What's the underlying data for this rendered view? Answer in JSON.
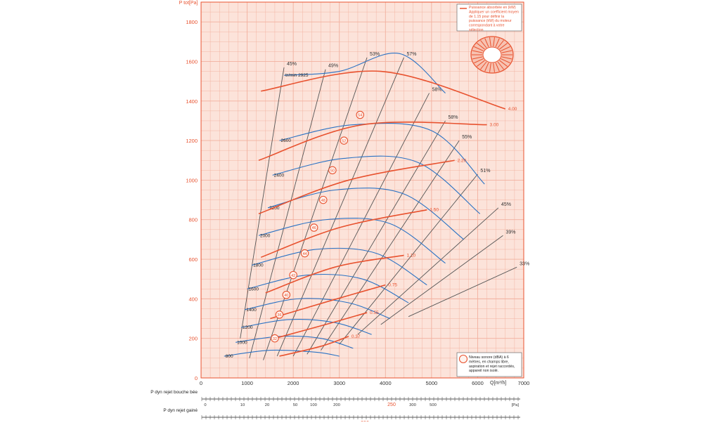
{
  "chart_data": {
    "type": "line",
    "title": "",
    "xlabel": "Q[m³/h]",
    "ylabel": "P tot[Pa]",
    "xlim": [
      0,
      7000
    ],
    "ylim": [
      0,
      1900
    ],
    "x_ticks": [
      0,
      1000,
      2000,
      3000,
      4000,
      5000,
      6000,
      7000
    ],
    "y_ticks": [
      0,
      200,
      400,
      600,
      800,
      1000,
      1200,
      1400,
      1600,
      1800
    ],
    "grid": true,
    "colors": {
      "background": "#fce3da",
      "grid": "#f2b09e",
      "speed": "#2a72c4",
      "power": "#e8522f",
      "efficiency": "#555555",
      "noise": "#111111",
      "axis": "#e8522f"
    },
    "speed_curves": [
      {
        "label": "800",
        "points": [
          [
            500,
            110
          ],
          [
            1500,
            140
          ],
          [
            2500,
            130
          ],
          [
            3000,
            110
          ]
        ]
      },
      {
        "label": "1000",
        "points": [
          [
            750,
            180
          ],
          [
            1700,
            210
          ],
          [
            2600,
            200
          ],
          [
            3300,
            150
          ]
        ]
      },
      {
        "label": "1200",
        "points": [
          [
            870,
            255
          ],
          [
            1900,
            295
          ],
          [
            2900,
            280
          ],
          [
            3700,
            220
          ]
        ]
      },
      {
        "label": "1400",
        "points": [
          [
            950,
            345
          ],
          [
            2100,
            400
          ],
          [
            3200,
            380
          ],
          [
            4100,
            300
          ]
        ]
      },
      {
        "label": "1600",
        "points": [
          [
            1000,
            450
          ],
          [
            2300,
            520
          ],
          [
            3500,
            500
          ],
          [
            4500,
            380
          ]
        ]
      },
      {
        "label": "1800",
        "points": [
          [
            1100,
            570
          ],
          [
            2500,
            650
          ],
          [
            3800,
            630
          ],
          [
            4900,
            470
          ]
        ]
      },
      {
        "label": "2000",
        "points": [
          [
            1250,
            720
          ],
          [
            2700,
            800
          ],
          [
            4100,
            780
          ],
          [
            5300,
            580
          ]
        ]
      },
      {
        "label": "2200",
        "points": [
          [
            1450,
            860
          ],
          [
            2900,
            950
          ],
          [
            4400,
            930
          ],
          [
            5700,
            700
          ]
        ]
      },
      {
        "label": "2400",
        "points": [
          [
            1550,
            1025
          ],
          [
            3100,
            1110
          ],
          [
            4700,
            1090
          ],
          [
            6050,
            830
          ]
        ]
      },
      {
        "label": "2600",
        "points": [
          [
            1700,
            1200
          ],
          [
            3300,
            1280
          ],
          [
            5000,
            1250
          ],
          [
            6150,
            980
          ]
        ]
      },
      {
        "label": "tr/min 2925",
        "points": [
          [
            1800,
            1530
          ],
          [
            3000,
            1550
          ],
          [
            4300,
            1640
          ],
          [
            5300,
            1440
          ]
        ]
      }
    ],
    "power_curves": [
      {
        "label": "0.37",
        "points": [
          [
            1700,
            110
          ],
          [
            2600,
            160
          ],
          [
            3200,
            210
          ]
        ]
      },
      {
        "label": "0.55",
        "points": [
          [
            1600,
            200
          ],
          [
            2700,
            270
          ],
          [
            3600,
            330
          ]
        ]
      },
      {
        "label": "0.75",
        "points": [
          [
            1500,
            300
          ],
          [
            2800,
            390
          ],
          [
            4000,
            470
          ]
        ]
      },
      {
        "label": "1.10",
        "points": [
          [
            1400,
            430
          ],
          [
            2900,
            560
          ],
          [
            4400,
            620
          ]
        ]
      },
      {
        "label": "1.50",
        "points": [
          [
            1300,
            610
          ],
          [
            3000,
            760
          ],
          [
            4900,
            850
          ]
        ]
      },
      {
        "label": "2.20",
        "points": [
          [
            1250,
            830
          ],
          [
            3200,
            1000
          ],
          [
            5500,
            1100
          ]
        ]
      },
      {
        "label": "3.00",
        "points": [
          [
            1250,
            1100
          ],
          [
            3500,
            1280
          ],
          [
            6200,
            1280
          ]
        ]
      },
      {
        "label": "4.00",
        "points": [
          [
            1300,
            1450
          ],
          [
            3900,
            1550
          ],
          [
            6600,
            1360
          ]
        ]
      }
    ],
    "efficiency_lines": [
      {
        "label": "45%",
        "points": [
          [
            1800,
            1570
          ],
          [
            850,
            200
          ]
        ]
      },
      {
        "label": "49%",
        "points": [
          [
            2700,
            1560
          ],
          [
            1050,
            100
          ]
        ]
      },
      {
        "label": "53%",
        "points": [
          [
            3600,
            1620
          ],
          [
            1350,
            90
          ]
        ]
      },
      {
        "label": "57%",
        "points": [
          [
            4400,
            1620
          ],
          [
            1650,
            110
          ]
        ]
      },
      {
        "label": "58%",
        "points": [
          [
            4950,
            1440
          ],
          [
            2000,
            110
          ]
        ]
      },
      {
        "label": "58%",
        "points": [
          [
            5300,
            1300
          ],
          [
            2300,
            120
          ]
        ]
      },
      {
        "label": "55%",
        "points": [
          [
            5600,
            1200
          ],
          [
            2600,
            140
          ]
        ]
      },
      {
        "label": "51%",
        "points": [
          [
            6000,
            1030
          ],
          [
            3000,
            170
          ]
        ]
      },
      {
        "label": "45%",
        "points": [
          [
            6450,
            860
          ],
          [
            3400,
            220
          ]
        ]
      },
      {
        "label": "39%",
        "points": [
          [
            6550,
            720
          ],
          [
            3900,
            270
          ]
        ]
      },
      {
        "label": "33%",
        "points": [
          [
            6850,
            560
          ],
          [
            4500,
            310
          ]
        ]
      }
    ],
    "noise_labels": [
      {
        "label": "32",
        "x": 1600,
        "y": 200
      },
      {
        "label": "36",
        "x": 1700,
        "y": 320
      },
      {
        "label": "40",
        "x": 1850,
        "y": 420
      },
      {
        "label": "42",
        "x": 2000,
        "y": 520
      },
      {
        "label": "44",
        "x": 2250,
        "y": 630
      },
      {
        "label": "46",
        "x": 2450,
        "y": 760
      },
      {
        "label": "48",
        "x": 2650,
        "y": 900
      },
      {
        "label": "50",
        "x": 2850,
        "y": 1050
      },
      {
        "label": "52",
        "x": 3100,
        "y": 1200
      },
      {
        "label": "54",
        "x": 3450,
        "y": 1330
      }
    ],
    "top_legend": "Puissance absorbée en (kW) Appliquer un coefficient moyen de 1.15 pour définir la puissance (kW) du moteur correspondant à votre sélection",
    "bottom_legend": "Niveau sonore (dBA) à 6 mètres, en champs libre, aspiration et rejet raccordés, appareil non isolé.",
    "bottom_scales": [
      {
        "label": "P dyn rejet bouche bée",
        "ticks": [
          "0",
          "10",
          "20",
          "50",
          "100",
          "200",
          "250",
          "300",
          "500"
        ],
        "highlight": "250",
        "unit": "[Pa]"
      },
      {
        "label": "P dyn rejet gainé",
        "ticks": [
          "0",
          "10",
          "20",
          "50",
          "100",
          "200",
          "300"
        ],
        "highlight": "200",
        "unit": "[Pa]"
      }
    ]
  }
}
